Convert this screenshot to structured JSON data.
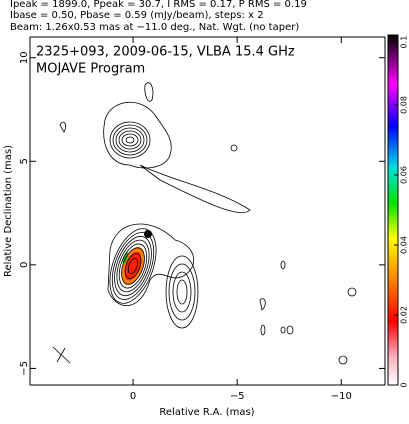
{
  "chart_data": {
    "type": "contour",
    "header": [
      "Ipeak = 1899.0, Ppeak = 30.7, I RMS = 0.17, P RMS = 0.19",
      "Ibase = 0.50, Pbase = 0.59 (mJy/beam), steps: x 2",
      "Beam: 1.26x0.53 mas at −11.0 deg., Nat. Wgt. (no taper)"
    ],
    "title": "2325+093, 2009-06-15, VLBA 15.4 GHz",
    "subtitle": "MOJAVE Program",
    "xlabel": "Relative R.A. (mas)",
    "ylabel": "Relative Declination (mas)",
    "xlim": [
      4.95,
      -12.1
    ],
    "xticks": [
      0,
      {
        "value": -5,
        "label": "−5"
      },
      {
        "value": -10,
        "label": "−10"
      }
    ],
    "ylim": [
      -5.8,
      11
    ],
    "yticks": [
      {
        "value": -5,
        "label": "−5"
      },
      0,
      5,
      10
    ],
    "colorbar": {
      "lim": [
        0,
        0.1
      ],
      "ticks": [
        0,
        0.02,
        0.04,
        0.06,
        0.08,
        0.1
      ]
    }
  }
}
